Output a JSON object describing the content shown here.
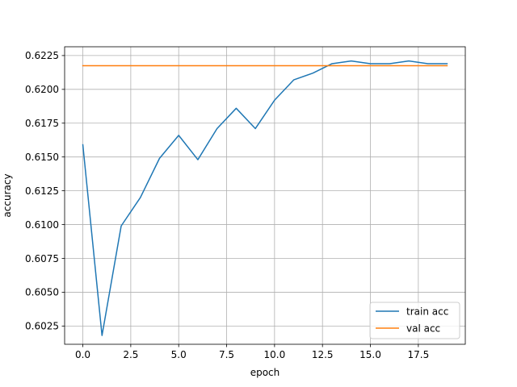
{
  "chart_data": {
    "type": "line",
    "title": "",
    "xlabel": "epoch",
    "ylabel": "accuracy",
    "xlim": [
      -0.95,
      19.95
    ],
    "ylim": [
      0.60115,
      0.62315
    ],
    "xticks": [
      0.0,
      2.5,
      5.0,
      7.5,
      10.0,
      12.5,
      15.0,
      17.5
    ],
    "xtick_labels": [
      "0.0",
      "2.5",
      "5.0",
      "7.5",
      "10.0",
      "12.5",
      "15.0",
      "17.5"
    ],
    "yticks": [
      0.6025,
      0.605,
      0.6075,
      0.61,
      0.6125,
      0.615,
      0.6175,
      0.62,
      0.6225
    ],
    "ytick_labels": [
      "0.6025",
      "0.6050",
      "0.6075",
      "0.6100",
      "0.6125",
      "0.6150",
      "0.6175",
      "0.6200",
      "0.6225"
    ],
    "grid": true,
    "legend_position": "lower-right",
    "x": [
      0,
      1,
      2,
      3,
      4,
      5,
      6,
      7,
      8,
      9,
      10,
      11,
      12,
      13,
      14,
      15,
      16,
      17,
      18,
      19
    ],
    "series": [
      {
        "name": "train acc",
        "color": "#1f77b4",
        "values": [
          0.6159,
          0.6018,
          0.6099,
          0.612,
          0.6149,
          0.6166,
          0.6148,
          0.6171,
          0.6186,
          0.6171,
          0.6192,
          0.6207,
          0.6212,
          0.6219,
          0.6221,
          0.6219,
          0.6219,
          0.6221,
          0.6219,
          0.6219
        ]
      },
      {
        "name": "val acc",
        "color": "#ff7f0e",
        "values": [
          0.62175,
          0.62175,
          0.62175,
          0.62175,
          0.62175,
          0.62175,
          0.62175,
          0.62175,
          0.62175,
          0.62175,
          0.62175,
          0.62175,
          0.62175,
          0.62175,
          0.62175,
          0.62175,
          0.62175,
          0.62175,
          0.62175,
          0.62175
        ]
      }
    ]
  }
}
